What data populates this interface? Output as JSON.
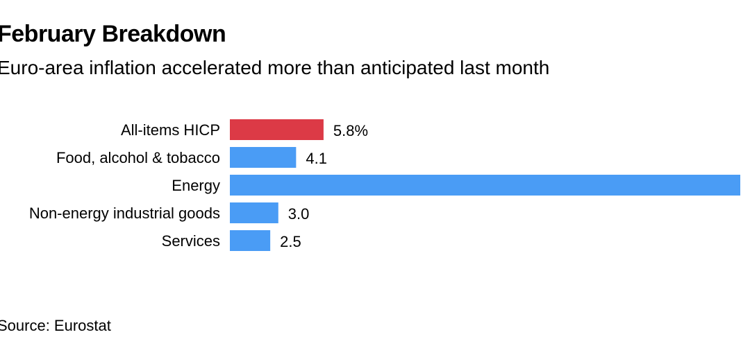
{
  "header": {
    "title": "February Breakdown",
    "subtitle": "Euro-area inflation accelerated more than anticipated last month"
  },
  "footer": {
    "source": "Source: Eurostat"
  },
  "colors": {
    "highlight": "#dc3a46",
    "bar": "#4a9cf5"
  },
  "chart_data": {
    "type": "bar",
    "orientation": "horizontal",
    "title": "February Breakdown",
    "subtitle": "Euro-area inflation accelerated more than anticipated last month",
    "categories": [
      "All-items HICP",
      "Food, alcohol & tobacco",
      "Energy",
      "Non-energy industrial goods",
      "Services"
    ],
    "values": [
      5.8,
      4.1,
      31.6,
      3.0,
      2.5
    ],
    "value_labels": [
      "5.8%",
      "4.1",
      "",
      "3.0",
      "2.5"
    ],
    "highlighted": [
      true,
      false,
      false,
      false,
      false
    ],
    "xlim": [
      0,
      31.6
    ],
    "grid": false,
    "legend": "none",
    "xlabel": "",
    "ylabel": ""
  }
}
